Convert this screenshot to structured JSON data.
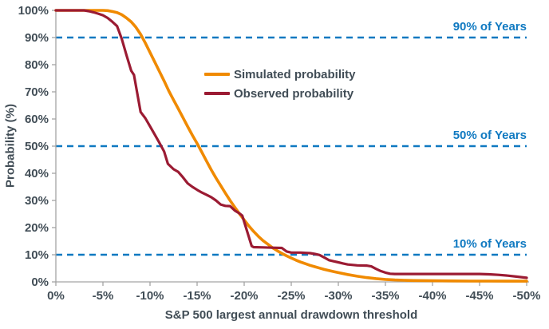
{
  "colors": {
    "simulated_orange": "#F08A00",
    "observed_maroon": "#9B1B33",
    "reference_blue": "#0F79C1",
    "axis_gray": "#A3A3A3",
    "text_dark": "#414D56",
    "background": "#FFFFFF"
  },
  "chart_data": {
    "type": "line",
    "xlabel": "S&P 500 largest annual drawdown threshold",
    "ylabel": "Probability (%)",
    "xlim": [
      0,
      -50
    ],
    "ylim": [
      0,
      100
    ],
    "grid": false,
    "legend_position": "upper-center-inside",
    "x_ticks": [
      {
        "value": 0,
        "label": "0%"
      },
      {
        "value": -5,
        "label": "-5%"
      },
      {
        "value": -10,
        "label": "-10%"
      },
      {
        "value": -15,
        "label": "-15%"
      },
      {
        "value": -20,
        "label": "-20%"
      },
      {
        "value": -25,
        "label": "-25%"
      },
      {
        "value": -30,
        "label": "-30%"
      },
      {
        "value": -35,
        "label": "-35%"
      },
      {
        "value": -40,
        "label": "-40%"
      },
      {
        "value": -45,
        "label": "-45%"
      },
      {
        "value": -50,
        "label": "-50%"
      }
    ],
    "y_ticks": [
      {
        "value": 0,
        "label": "0%"
      },
      {
        "value": 10,
        "label": "10%"
      },
      {
        "value": 20,
        "label": "20%"
      },
      {
        "value": 30,
        "label": "30%"
      },
      {
        "value": 40,
        "label": "40%"
      },
      {
        "value": 50,
        "label": "50%"
      },
      {
        "value": 60,
        "label": "60%"
      },
      {
        "value": 70,
        "label": "70%"
      },
      {
        "value": 80,
        "label": "80%"
      },
      {
        "value": 90,
        "label": "90%"
      },
      {
        "value": 100,
        "label": "100%"
      }
    ],
    "reference_lines": [
      {
        "value": 90,
        "label": "90% of Years"
      },
      {
        "value": 50,
        "label": "50% of Years"
      },
      {
        "value": 10,
        "label": "10% of Years"
      }
    ],
    "series": [
      {
        "name": "Simulated probability",
        "color": "#F08A00",
        "width": 3.6,
        "points": [
          [
            0,
            100
          ],
          [
            -2,
            100
          ],
          [
            -4,
            100
          ],
          [
            -5,
            100
          ],
          [
            -5.5,
            99.9
          ],
          [
            -6,
            99.6
          ],
          [
            -6.5,
            99.2
          ],
          [
            -7,
            98.4
          ],
          [
            -7.5,
            97.2
          ],
          [
            -8,
            95.8
          ],
          [
            -8.5,
            93.8
          ],
          [
            -9,
            91.2
          ],
          [
            -9.5,
            88
          ],
          [
            -10,
            84.5
          ],
          [
            -10.5,
            81
          ],
          [
            -11,
            77.5
          ],
          [
            -11.5,
            74
          ],
          [
            -12,
            70.3
          ],
          [
            -12.5,
            67
          ],
          [
            -13,
            63.8
          ],
          [
            -13.5,
            60.5
          ],
          [
            -14,
            57.2
          ],
          [
            -14.5,
            54
          ],
          [
            -15,
            51
          ],
          [
            -15.5,
            47.8
          ],
          [
            -16,
            44.5
          ],
          [
            -16.5,
            41.3
          ],
          [
            -17,
            38.3
          ],
          [
            -17.5,
            35.5
          ],
          [
            -18,
            32.7
          ],
          [
            -18.5,
            30
          ],
          [
            -19,
            27.5
          ],
          [
            -19.5,
            25.1
          ],
          [
            -20,
            22.8
          ],
          [
            -20.5,
            20.6
          ],
          [
            -21,
            18.6
          ],
          [
            -21.5,
            16.8
          ],
          [
            -22,
            15.2
          ],
          [
            -22.5,
            13.9
          ],
          [
            -23,
            12.6
          ],
          [
            -23.5,
            11.5
          ],
          [
            -24,
            10.5
          ],
          [
            -24.5,
            9.6
          ],
          [
            -25,
            8.8
          ],
          [
            -25.5,
            8.0
          ],
          [
            -26,
            7.3
          ],
          [
            -26.5,
            6.7
          ],
          [
            -27,
            6.1
          ],
          [
            -27.5,
            5.6
          ],
          [
            -28,
            5.1
          ],
          [
            -28.5,
            4.6
          ],
          [
            -29,
            4.2
          ],
          [
            -29.5,
            3.8
          ],
          [
            -30,
            3.4
          ],
          [
            -31,
            2.7
          ],
          [
            -32,
            2.1
          ],
          [
            -33,
            1.6
          ],
          [
            -34,
            1.2
          ],
          [
            -35,
            0.9
          ],
          [
            -36,
            0.7
          ],
          [
            -37,
            0.6
          ],
          [
            -38,
            0.5
          ],
          [
            -40,
            0.4
          ],
          [
            -42,
            0.35
          ],
          [
            -44,
            0.3
          ],
          [
            -46,
            0.3
          ],
          [
            -48,
            0.25
          ],
          [
            -50,
            0.25
          ]
        ]
      },
      {
        "name": "Observed probability",
        "color": "#9B1B33",
        "width": 3.2,
        "points": [
          [
            0,
            100
          ],
          [
            -1,
            100
          ],
          [
            -2,
            100
          ],
          [
            -3,
            100
          ],
          [
            -3.5,
            99.7
          ],
          [
            -4,
            99.3
          ],
          [
            -4.5,
            98.8
          ],
          [
            -5,
            98.2
          ],
          [
            -5.5,
            97.2
          ],
          [
            -6,
            95.8
          ],
          [
            -6.5,
            94.2
          ],
          [
            -7,
            89.5
          ],
          [
            -7.5,
            83.5
          ],
          [
            -8,
            77.8
          ],
          [
            -8.3,
            76.2
          ],
          [
            -9,
            62.6
          ],
          [
            -9.5,
            60.3
          ],
          [
            -10,
            57.3
          ],
          [
            -10.5,
            54.3
          ],
          [
            -11,
            51.2
          ],
          [
            -11.5,
            48
          ],
          [
            -11.9,
            43.5
          ],
          [
            -12.5,
            41.5
          ],
          [
            -13,
            40.5
          ],
          [
            -13.5,
            38.5
          ],
          [
            -14,
            36.3
          ],
          [
            -14.5,
            35
          ],
          [
            -15,
            33.9
          ],
          [
            -15.5,
            32.9
          ],
          [
            -16,
            32.1
          ],
          [
            -16.5,
            31.2
          ],
          [
            -17,
            30
          ],
          [
            -17.5,
            28.5
          ],
          [
            -18,
            28
          ],
          [
            -18.5,
            27.9
          ],
          [
            -19,
            26.3
          ],
          [
            -19.5,
            25.2
          ],
          [
            -19.8,
            24.4
          ],
          [
            -20.8,
            13.2
          ],
          [
            -21,
            12.8
          ],
          [
            -22,
            12.7
          ],
          [
            -23,
            12.6
          ],
          [
            -24,
            12.5
          ],
          [
            -24.5,
            11.2
          ],
          [
            -25,
            10.8
          ],
          [
            -26,
            10.8
          ],
          [
            -27,
            10.6
          ],
          [
            -27.5,
            10.3
          ],
          [
            -28,
            9.9
          ],
          [
            -28.5,
            9.0
          ],
          [
            -29,
            8.0
          ],
          [
            -29.5,
            7.6
          ],
          [
            -30,
            7.2
          ],
          [
            -30.5,
            6.8
          ],
          [
            -31,
            6.4
          ],
          [
            -32,
            6.1
          ],
          [
            -33,
            6.0
          ],
          [
            -33.5,
            5.7
          ],
          [
            -34,
            4.8
          ],
          [
            -34.5,
            4.0
          ],
          [
            -35,
            3.4
          ],
          [
            -35.5,
            3.0
          ],
          [
            -36,
            2.9
          ],
          [
            -38,
            2.9
          ],
          [
            -40,
            2.9
          ],
          [
            -42,
            2.9
          ],
          [
            -44,
            2.9
          ],
          [
            -45,
            2.9
          ],
          [
            -46,
            2.8
          ],
          [
            -47,
            2.6
          ],
          [
            -48,
            2.3
          ],
          [
            -49,
            1.9
          ],
          [
            -50,
            1.5
          ]
        ]
      }
    ]
  }
}
